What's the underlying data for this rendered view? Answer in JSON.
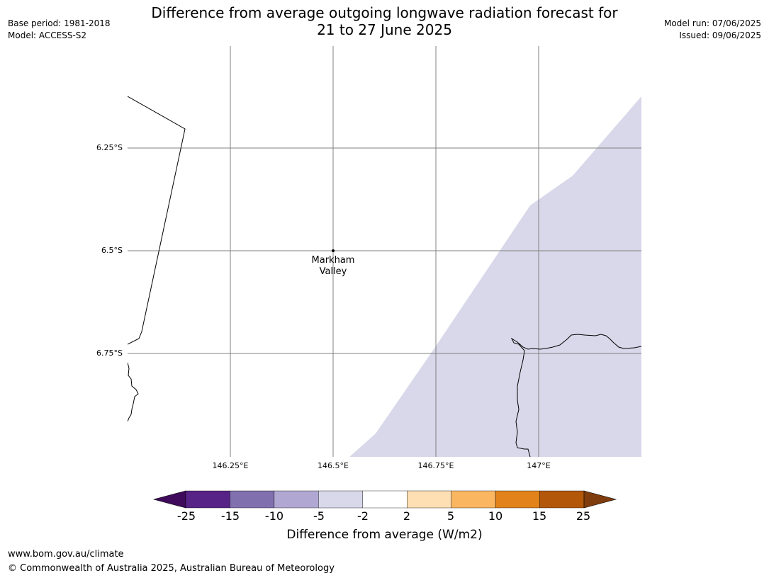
{
  "title": {
    "line1": "Difference from average outgoing longwave radiation forecast for",
    "line2": "21 to 27 June 2025"
  },
  "meta_left": {
    "base_period": "Base period: 1981-2018",
    "model": "Model: ACCESS-S2"
  },
  "meta_right": {
    "model_run": "Model run: 07/06/2025",
    "issued": "Issued: 09/06/2025"
  },
  "map": {
    "lat_labels": [
      "6.25°S",
      "6.5°S",
      "6.75°S"
    ],
    "lon_labels": [
      "146.25°E",
      "146.5°E",
      "146.75°E",
      "147°E"
    ],
    "place": {
      "name_line1": "Markham",
      "name_line2": "Valley"
    },
    "shaded_category": "-5 to -2",
    "colors": {
      "shaded": "#d8d8ea",
      "gridline": "#808080",
      "coast": "#000000"
    }
  },
  "colorbar": {
    "title": "Difference from average (W/m2)",
    "ticks": [
      "-25",
      "-15",
      "-10",
      "-5",
      "-2",
      "2",
      "5",
      "10",
      "15",
      "25"
    ],
    "colors": [
      "#3f0a5c",
      "#572387",
      "#8070ae",
      "#b0a8d2",
      "#d8d8ea",
      "#ffffff",
      "#fedfb3",
      "#fbb661",
      "#e1821a",
      "#b3570a",
      "#7f3c0c"
    ]
  },
  "footer": {
    "url": "www.bom.gov.au/climate",
    "copyright": "© Commonwealth of Australia 2025, Australian Bureau of Meteorology"
  }
}
